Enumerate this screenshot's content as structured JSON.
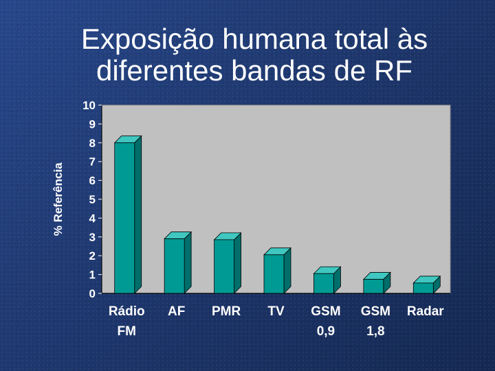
{
  "chart_data": {
    "type": "bar",
    "title_lines": [
      "Exposição humana total às",
      "diferentes bandas de RF"
    ],
    "ylabel": "% Referência",
    "xlabel": "",
    "ylim": [
      0,
      10
    ],
    "yticks": [
      "0",
      "1",
      "2",
      "3",
      "4",
      "5",
      "6",
      "7",
      "8",
      "9",
      "10"
    ],
    "categories": [
      [
        "Rádio",
        "FM"
      ],
      [
        "AF"
      ],
      [
        "PMR"
      ],
      [
        "TV"
      ],
      [
        "GSM",
        "0,9"
      ],
      [
        "GSM",
        "1,8"
      ],
      [
        "Radar"
      ]
    ],
    "values": [
      8.0,
      2.9,
      2.85,
      2.05,
      1.05,
      0.75,
      0.55
    ],
    "bar_color": "#009a94",
    "bar_top_color": "#3fc7c0",
    "bar_side_color": "#006e6a",
    "plot_background": "#c0c0c0",
    "grid": false,
    "legend": "none"
  }
}
